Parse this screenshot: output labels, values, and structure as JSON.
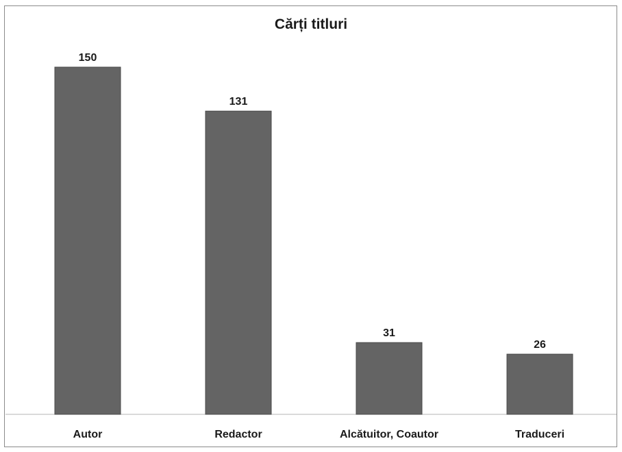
{
  "chart_data": {
    "type": "bar",
    "title": "Cărți titluri",
    "categories": [
      "Autor",
      "Redactor",
      "Alcătuitor, Coautor",
      "Traduceri"
    ],
    "values": [
      150,
      131,
      31,
      26
    ],
    "data_labels": [
      "150",
      "131",
      "31",
      "26"
    ],
    "xlabel": "",
    "ylabel": "",
    "ylim": [
      0,
      150
    ],
    "grid": false,
    "legend": "none",
    "bar_color": "#646464"
  }
}
